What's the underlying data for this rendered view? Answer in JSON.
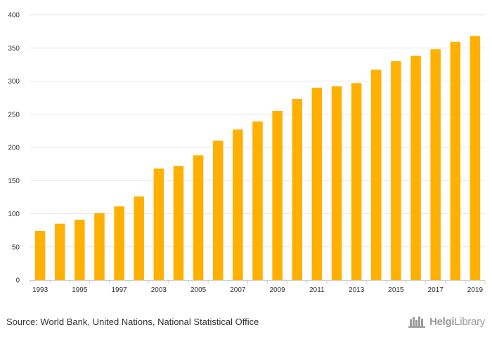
{
  "chart_data": {
    "type": "bar",
    "title": "",
    "xlabel": "",
    "ylabel": "",
    "ylim": [
      0,
      400
    ],
    "yticks": [
      0,
      50,
      100,
      150,
      200,
      250,
      300,
      350,
      400
    ],
    "grid": true,
    "categories": [
      "1993",
      "1994",
      "1995",
      "1996",
      "1997",
      "1998",
      "2003",
      "2004",
      "2005",
      "2006",
      "2007",
      "2008",
      "2009",
      "2010",
      "2011",
      "2012",
      "2013",
      "2014",
      "2015",
      "2016",
      "2017",
      "2018",
      "2019"
    ],
    "x_tick_labels": [
      "1993",
      "",
      "1995",
      "",
      "1997",
      "",
      "2003",
      "",
      "2005",
      "",
      "2007",
      "",
      "2009",
      "",
      "2011",
      "",
      "2013",
      "",
      "2015",
      "",
      "2017",
      "",
      "2019"
    ],
    "values": [
      74,
      85,
      91,
      101,
      111,
      126,
      168,
      172,
      188,
      210,
      227,
      239,
      255,
      273,
      290,
      292,
      297,
      317,
      330,
      338,
      348,
      359,
      368
    ],
    "bar_color": "#FFB000"
  },
  "footer": {
    "source": "Source: World Bank, United Nations, National Statistical Office",
    "brand_bold": "Helgi",
    "brand_light": "Library"
  },
  "colors": {
    "grid": "#e6e6e6",
    "axis": "#cccccc",
    "text": "#333333",
    "brand": "#9a9a9a"
  }
}
